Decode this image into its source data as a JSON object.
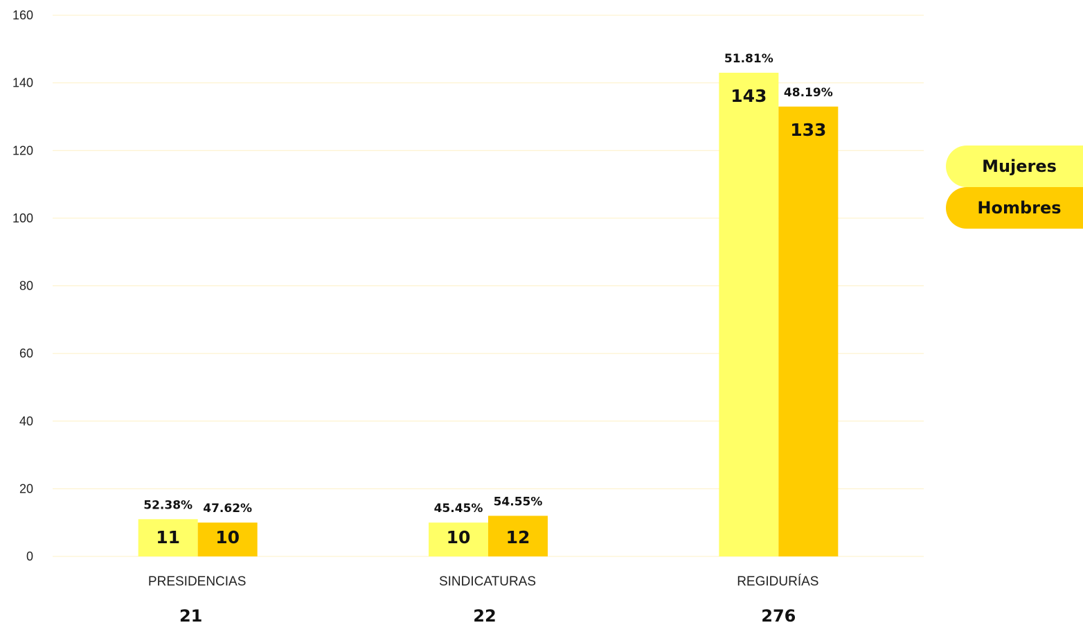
{
  "chart_data": {
    "type": "bar",
    "categories": [
      "PRESIDENCIAS",
      "SINDICATURAS",
      "REGIDURÍAS"
    ],
    "totals": [
      "21",
      "22",
      "276"
    ],
    "series": [
      {
        "name": "Mujeres",
        "color": "#FFFF66",
        "values": [
          11,
          10,
          143
        ],
        "labels": [
          "11",
          "10",
          "143"
        ],
        "percent_labels": [
          "52.38%",
          "45.45%",
          "51.81%"
        ]
      },
      {
        "name": "Hombres",
        "color": "#FFCC00",
        "values": [
          10,
          12,
          133
        ],
        "labels": [
          "10",
          "12",
          "133"
        ],
        "percent_labels": [
          "47.62%",
          "54.55%",
          "48.19%"
        ]
      }
    ],
    "ylim": [
      0,
      160
    ],
    "yticks": [
      "0",
      "20",
      "40",
      "60",
      "80",
      "100",
      "120",
      "140",
      "160"
    ],
    "grid": true,
    "gridline_color": "#FDF0C4",
    "legend_position": "right"
  }
}
